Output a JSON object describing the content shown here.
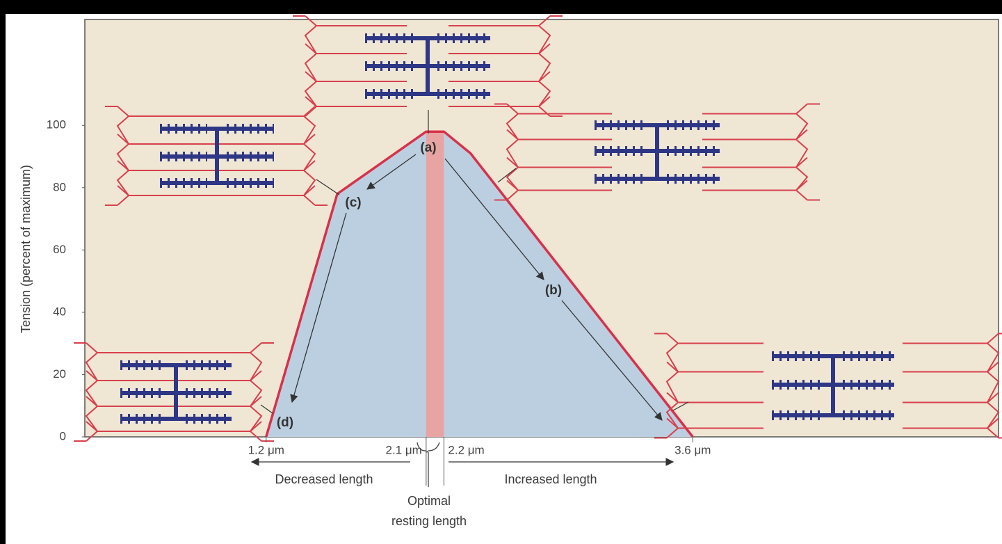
{
  "chart_data": {
    "type": "area",
    "y_label": "Tension (percent of maximum)",
    "x": [
      1.2,
      1.6,
      2.1,
      2.2,
      2.35,
      3.6
    ],
    "values": [
      0,
      78,
      98,
      98,
      91,
      0
    ],
    "color": "#d8314a",
    "fill": "#bccfe0",
    "band_color": "#e8a4a2",
    "xlim": [
      0.18,
      5.32
    ],
    "xticks": [
      {
        "value": 1.2,
        "label": "1.2 μm"
      },
      {
        "value": 2.1,
        "label": "2.1 μm"
      },
      {
        "value": 2.2,
        "label": "2.2 μm"
      },
      {
        "value": 3.6,
        "label": "3.6 μm"
      }
    ],
    "ylim": [
      0,
      134
    ],
    "yticks": [
      0,
      20,
      40,
      60,
      80,
      100
    ],
    "annotations": [
      "(a)",
      "(b)",
      "(c)",
      "(d)"
    ],
    "direction_labels": [
      "Decreased length",
      "Increased length"
    ],
    "optimal_label": [
      "Optimal",
      "resting length"
    ]
  }
}
